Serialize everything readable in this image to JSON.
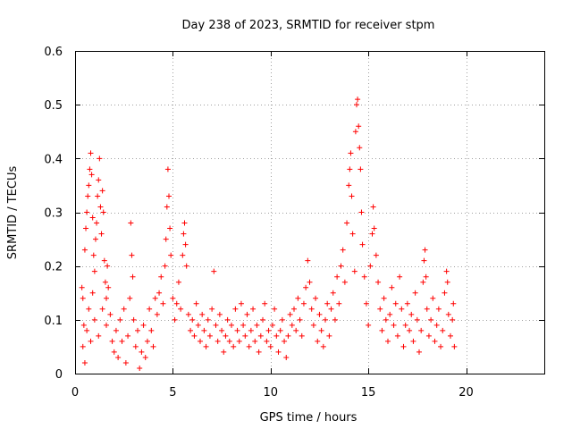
{
  "chart_data": {
    "type": "scatter",
    "title": "Day 238 of 2023, SRMTID for receiver stpm",
    "xlabel": "GPS time / hours",
    "ylabel": "SRMTID / TECUs",
    "xlim": [
      0,
      24
    ],
    "ylim": [
      0,
      0.6
    ],
    "x_ticks": [
      0,
      5,
      10,
      15,
      20
    ],
    "y_ticks": [
      0,
      0.1,
      0.2,
      0.3,
      0.4,
      0.5,
      0.6
    ],
    "x_tick_labels": [
      "0",
      "5",
      "10",
      "15",
      "20"
    ],
    "y_tick_labels": [
      "0",
      "0.1",
      "0.2",
      "0.3",
      "0.4",
      "0.5",
      "0.6"
    ],
    "grid": true,
    "marker": "plus",
    "color": "#ff0000",
    "series": [
      {
        "name": "SRMTID",
        "points": [
          [
            0.35,
            0.16
          ],
          [
            0.4,
            0.14
          ],
          [
            0.45,
            0.09
          ],
          [
            0.5,
            0.23
          ],
          [
            0.55,
            0.27
          ],
          [
            0.6,
            0.3
          ],
          [
            0.65,
            0.33
          ],
          [
            0.7,
            0.35
          ],
          [
            0.75,
            0.38
          ],
          [
            0.8,
            0.41
          ],
          [
            0.85,
            0.37
          ],
          [
            0.9,
            0.29
          ],
          [
            0.95,
            0.22
          ],
          [
            1.0,
            0.19
          ],
          [
            1.05,
            0.25
          ],
          [
            1.1,
            0.28
          ],
          [
            1.15,
            0.33
          ],
          [
            1.2,
            0.36
          ],
          [
            1.25,
            0.4
          ],
          [
            1.3,
            0.31
          ],
          [
            1.35,
            0.26
          ],
          [
            1.4,
            0.34
          ],
          [
            1.45,
            0.3
          ],
          [
            1.5,
            0.21
          ],
          [
            1.55,
            0.17
          ],
          [
            1.6,
            0.14
          ],
          [
            1.65,
            0.2
          ],
          [
            1.7,
            0.16
          ],
          [
            0.4,
            0.05
          ],
          [
            0.5,
            0.02
          ],
          [
            0.6,
            0.08
          ],
          [
            0.7,
            0.12
          ],
          [
            0.8,
            0.06
          ],
          [
            0.9,
            0.15
          ],
          [
            1.0,
            0.1
          ],
          [
            1.2,
            0.07
          ],
          [
            1.4,
            0.12
          ],
          [
            1.6,
            0.09
          ],
          [
            1.8,
            0.11
          ],
          [
            1.9,
            0.06
          ],
          [
            2.0,
            0.04
          ],
          [
            2.1,
            0.08
          ],
          [
            2.2,
            0.03
          ],
          [
            2.3,
            0.1
          ],
          [
            2.4,
            0.06
          ],
          [
            2.5,
            0.12
          ],
          [
            2.6,
            0.02
          ],
          [
            2.7,
            0.07
          ],
          [
            2.8,
            0.14
          ],
          [
            2.85,
            0.28
          ],
          [
            2.9,
            0.22
          ],
          [
            2.95,
            0.18
          ],
          [
            3.0,
            0.1
          ],
          [
            3.1,
            0.05
          ],
          [
            3.2,
            0.08
          ],
          [
            3.3,
            0.01
          ],
          [
            3.4,
            0.04
          ],
          [
            3.5,
            0.09
          ],
          [
            3.6,
            0.03
          ],
          [
            3.7,
            0.06
          ],
          [
            3.8,
            0.12
          ],
          [
            3.9,
            0.08
          ],
          [
            4.0,
            0.05
          ],
          [
            4.1,
            0.14
          ],
          [
            4.2,
            0.11
          ],
          [
            4.3,
            0.15
          ],
          [
            4.4,
            0.18
          ],
          [
            4.5,
            0.13
          ],
          [
            4.6,
            0.2
          ],
          [
            4.65,
            0.25
          ],
          [
            4.7,
            0.31
          ],
          [
            4.75,
            0.38
          ],
          [
            4.8,
            0.33
          ],
          [
            4.85,
            0.27
          ],
          [
            4.9,
            0.22
          ],
          [
            5.0,
            0.14
          ],
          [
            5.1,
            0.1
          ],
          [
            5.2,
            0.13
          ],
          [
            5.3,
            0.17
          ],
          [
            5.4,
            0.12
          ],
          [
            5.5,
            0.22
          ],
          [
            5.55,
            0.26
          ],
          [
            5.6,
            0.28
          ],
          [
            5.65,
            0.24
          ],
          [
            5.7,
            0.2
          ],
          [
            5.8,
            0.11
          ],
          [
            5.9,
            0.08
          ],
          [
            6.0,
            0.1
          ],
          [
            6.1,
            0.07
          ],
          [
            6.2,
            0.13
          ],
          [
            6.3,
            0.09
          ],
          [
            6.4,
            0.06
          ],
          [
            6.5,
            0.11
          ],
          [
            6.6,
            0.08
          ],
          [
            6.7,
            0.05
          ],
          [
            6.8,
            0.1
          ],
          [
            6.9,
            0.07
          ],
          [
            7.0,
            0.12
          ],
          [
            7.1,
            0.19
          ],
          [
            7.2,
            0.09
          ],
          [
            7.3,
            0.06
          ],
          [
            7.4,
            0.11
          ],
          [
            7.5,
            0.08
          ],
          [
            7.6,
            0.04
          ],
          [
            7.7,
            0.07
          ],
          [
            7.8,
            0.1
          ],
          [
            7.9,
            0.06
          ],
          [
            8.0,
            0.09
          ],
          [
            8.1,
            0.05
          ],
          [
            8.2,
            0.12
          ],
          [
            8.3,
            0.08
          ],
          [
            8.4,
            0.06
          ],
          [
            8.5,
            0.13
          ],
          [
            8.6,
            0.09
          ],
          [
            8.7,
            0.07
          ],
          [
            8.8,
            0.11
          ],
          [
            8.9,
            0.05
          ],
          [
            9.0,
            0.08
          ],
          [
            9.1,
            0.12
          ],
          [
            9.2,
            0.06
          ],
          [
            9.3,
            0.09
          ],
          [
            9.4,
            0.04
          ],
          [
            9.5,
            0.07
          ],
          [
            9.6,
            0.1
          ],
          [
            9.7,
            0.13
          ],
          [
            9.8,
            0.06
          ],
          [
            9.9,
            0.08
          ],
          [
            10.0,
            0.05
          ],
          [
            10.1,
            0.09
          ],
          [
            10.2,
            0.12
          ],
          [
            10.3,
            0.07
          ],
          [
            10.4,
            0.04
          ],
          [
            10.5,
            0.08
          ],
          [
            10.6,
            0.1
          ],
          [
            10.7,
            0.06
          ],
          [
            10.8,
            0.03
          ],
          [
            10.9,
            0.07
          ],
          [
            11.0,
            0.11
          ],
          [
            11.1,
            0.09
          ],
          [
            11.2,
            0.12
          ],
          [
            11.3,
            0.08
          ],
          [
            11.4,
            0.14
          ],
          [
            11.5,
            0.1
          ],
          [
            11.6,
            0.07
          ],
          [
            11.7,
            0.13
          ],
          [
            11.8,
            0.16
          ],
          [
            11.9,
            0.21
          ],
          [
            12.0,
            0.17
          ],
          [
            12.1,
            0.12
          ],
          [
            12.2,
            0.09
          ],
          [
            12.3,
            0.14
          ],
          [
            12.4,
            0.06
          ],
          [
            12.5,
            0.11
          ],
          [
            12.6,
            0.08
          ],
          [
            12.7,
            0.05
          ],
          [
            12.8,
            0.1
          ],
          [
            12.9,
            0.13
          ],
          [
            13.0,
            0.07
          ],
          [
            13.1,
            0.12
          ],
          [
            13.2,
            0.15
          ],
          [
            13.3,
            0.1
          ],
          [
            13.4,
            0.18
          ],
          [
            13.5,
            0.13
          ],
          [
            13.6,
            0.2
          ],
          [
            13.7,
            0.23
          ],
          [
            13.8,
            0.17
          ],
          [
            13.9,
            0.28
          ],
          [
            14.0,
            0.35
          ],
          [
            14.05,
            0.38
          ],
          [
            14.1,
            0.41
          ],
          [
            14.15,
            0.33
          ],
          [
            14.2,
            0.26
          ],
          [
            14.3,
            0.19
          ],
          [
            14.35,
            0.45
          ],
          [
            14.4,
            0.5
          ],
          [
            14.45,
            0.51
          ],
          [
            14.5,
            0.46
          ],
          [
            14.55,
            0.42
          ],
          [
            14.6,
            0.38
          ],
          [
            14.65,
            0.3
          ],
          [
            14.7,
            0.24
          ],
          [
            14.8,
            0.18
          ],
          [
            14.9,
            0.13
          ],
          [
            15.0,
            0.09
          ],
          [
            15.1,
            0.2
          ],
          [
            15.2,
            0.26
          ],
          [
            15.25,
            0.31
          ],
          [
            15.3,
            0.27
          ],
          [
            15.4,
            0.22
          ],
          [
            15.5,
            0.17
          ],
          [
            15.6,
            0.12
          ],
          [
            15.7,
            0.08
          ],
          [
            15.8,
            0.14
          ],
          [
            15.9,
            0.1
          ],
          [
            16.0,
            0.06
          ],
          [
            16.1,
            0.11
          ],
          [
            16.2,
            0.16
          ],
          [
            16.3,
            0.09
          ],
          [
            16.4,
            0.13
          ],
          [
            16.5,
            0.07
          ],
          [
            16.6,
            0.18
          ],
          [
            16.7,
            0.12
          ],
          [
            16.8,
            0.05
          ],
          [
            16.9,
            0.09
          ],
          [
            17.0,
            0.13
          ],
          [
            17.1,
            0.08
          ],
          [
            17.2,
            0.11
          ],
          [
            17.3,
            0.06
          ],
          [
            17.4,
            0.15
          ],
          [
            17.5,
            0.1
          ],
          [
            17.6,
            0.04
          ],
          [
            17.7,
            0.08
          ],
          [
            17.8,
            0.17
          ],
          [
            17.85,
            0.21
          ],
          [
            17.9,
            0.23
          ],
          [
            17.95,
            0.18
          ],
          [
            18.0,
            0.12
          ],
          [
            18.1,
            0.07
          ],
          [
            18.2,
            0.1
          ],
          [
            18.3,
            0.14
          ],
          [
            18.4,
            0.06
          ],
          [
            18.5,
            0.09
          ],
          [
            18.6,
            0.12
          ],
          [
            18.7,
            0.05
          ],
          [
            18.8,
            0.08
          ],
          [
            18.9,
            0.15
          ],
          [
            19.0,
            0.19
          ],
          [
            19.05,
            0.17
          ],
          [
            19.1,
            0.11
          ],
          [
            19.2,
            0.07
          ],
          [
            19.3,
            0.1
          ],
          [
            19.35,
            0.13
          ],
          [
            19.4,
            0.05
          ]
        ]
      }
    ]
  }
}
